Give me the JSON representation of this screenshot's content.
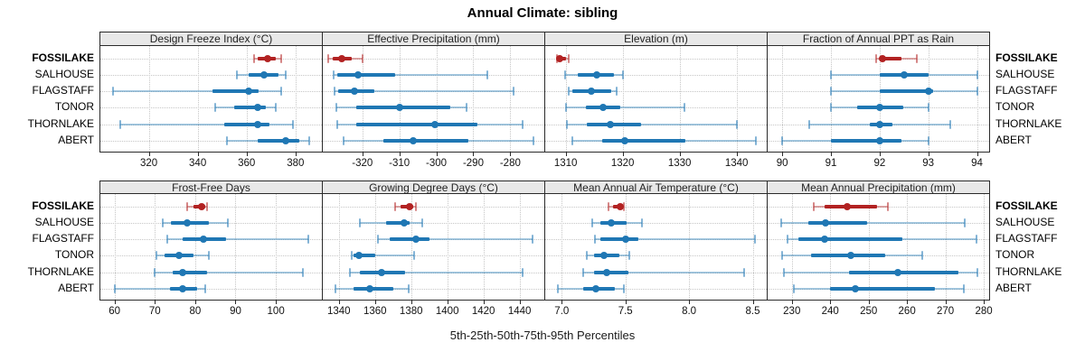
{
  "title": "Annual Climate: sibling",
  "footer": "5th-25th-50th-75th-95th Percentiles",
  "sites": [
    "FOSSILAKE",
    "SALHOUSE",
    "FLAGSTAFF",
    "TONOR",
    "THORNLAKE",
    "ABERT"
  ],
  "highlight_site": "FOSSILAKE",
  "colors": {
    "highlight": "#b22222",
    "normal": "#1f77b4",
    "grid": "#c6c6c6",
    "header_bg": "#e8e8e8",
    "border": "#2b2b2b"
  },
  "chart_data": {
    "type": "dotplot-percentiles",
    "title": "Annual Climate: sibling",
    "xlabel": "5th-25th-50th-75th-95th Percentiles",
    "percentiles": [
      5,
      25,
      50,
      75,
      95
    ],
    "layout": {
      "rows": 2,
      "cols": 4,
      "grid": "dotted",
      "legend_position": "none"
    },
    "categories": [
      "FOSSILAKE",
      "SALHOUSE",
      "FLAGSTAFF",
      "TONOR",
      "THORNLAKE",
      "ABERT"
    ],
    "panels": [
      {
        "title": "Design Freeze Index (°C)",
        "domain": [
          300.2,
          390.8
        ],
        "ticks": [
          {
            "v": 320,
            "label": "320"
          },
          {
            "v": 340,
            "label": "340"
          },
          {
            "v": 360,
            "label": "360"
          },
          {
            "v": 380,
            "label": "380"
          }
        ],
        "values": [
          [
            363,
            364.5,
            368.5,
            372,
            374
          ],
          [
            356,
            361,
            367,
            373,
            376
          ],
          [
            305.5,
            346,
            361,
            365,
            374
          ],
          [
            347,
            355,
            364.5,
            368,
            372
          ],
          [
            308.5,
            351,
            364.5,
            369.5,
            379
          ],
          [
            352,
            364.5,
            376,
            381.5,
            385.5
          ]
        ]
      },
      {
        "title": "Effective Precipitation (mm)",
        "domain": [
          -330.7,
          -270.8
        ],
        "ticks": [
          {
            "v": -320,
            "label": "-320"
          },
          {
            "v": -310,
            "label": "-310"
          },
          {
            "v": -300,
            "label": "-300"
          },
          {
            "v": -290,
            "label": "-290"
          },
          {
            "v": -280,
            "label": "-280"
          }
        ],
        "values": [
          [
            -329.2,
            -328,
            -325.6,
            -322.9,
            -320
          ],
          [
            -327.8,
            -326.7,
            -321.2,
            -311.2,
            -286.1
          ],
          [
            -327.5,
            -326.5,
            -322.2,
            -316.7,
            -279
          ],
          [
            -327,
            -321.6,
            -310,
            -296.3,
            -291.9
          ],
          [
            -326.7,
            -321.6,
            -300.5,
            -288.9,
            -276.7
          ],
          [
            -325,
            -314.3,
            -306.2,
            -291.4,
            -273.7
          ]
        ]
      },
      {
        "title": "Elevation (m)",
        "domain": [
          1306.4,
          1345.3
        ],
        "ticks": [
          {
            "v": 1310,
            "label": "1310"
          },
          {
            "v": 1320,
            "label": "1320"
          },
          {
            "v": 1330,
            "label": "1330"
          },
          {
            "v": 1340,
            "label": "1340"
          }
        ],
        "values": [
          [
            1308.4,
            1308.7,
            1309,
            1310,
            1310.5
          ],
          [
            1309.9,
            1312.1,
            1315.4,
            1318.5,
            1320
          ],
          [
            1310.6,
            1311.1,
            1314.5,
            1318,
            1319
          ],
          [
            1310,
            1313.5,
            1316.5,
            1319.6,
            1330.9
          ],
          [
            1310.2,
            1313.7,
            1317.9,
            1323.3,
            1340
          ],
          [
            1311.2,
            1316.4,
            1320.4,
            1331,
            1343.4
          ]
        ]
      },
      {
        "title": "Fraction of Annual PPT as Rain",
        "domain": [
          89.7,
          94.25
        ],
        "ticks": [
          {
            "v": 90,
            "label": "90"
          },
          {
            "v": 91,
            "label": "91"
          },
          {
            "v": 92,
            "label": "92"
          },
          {
            "v": 93,
            "label": "93"
          },
          {
            "v": 94,
            "label": "94"
          }
        ],
        "values": [
          [
            91.93,
            92,
            92.05,
            92.45,
            92.76
          ],
          [
            91,
            92,
            92.5,
            93,
            94
          ],
          [
            91,
            92,
            93,
            93.1,
            94
          ],
          [
            91,
            91.53,
            92,
            92.48,
            93
          ],
          [
            90.55,
            91.8,
            92,
            92.26,
            93.45
          ],
          [
            90,
            91,
            92,
            92.45,
            93
          ]
        ]
      },
      {
        "title": "Frost-Free Days",
        "domain": [
          56.5,
          111.4
        ],
        "ticks": [
          {
            "v": 60,
            "label": "60"
          },
          {
            "v": 70,
            "label": "70"
          },
          {
            "v": 80,
            "label": "80"
          },
          {
            "v": 90,
            "label": "90"
          },
          {
            "v": 100,
            "label": "100"
          }
        ],
        "values": [
          [
            78,
            79.5,
            81.5,
            82.5,
            83
          ],
          [
            72,
            74,
            78,
            83.3,
            88
          ],
          [
            73,
            77,
            82,
            87.7,
            108
          ],
          [
            70.3,
            72.5,
            76,
            79.5,
            83.3
          ],
          [
            70,
            74.5,
            77,
            83,
            106.8
          ],
          [
            60,
            73.8,
            77,
            80.5,
            82.4
          ]
        ]
      },
      {
        "title": "Growing Degree Days (°C)",
        "domain": [
          1331.1,
          1453.7
        ],
        "ticks": [
          {
            "v": 1340,
            "label": "1340"
          },
          {
            "v": 1360,
            "label": "1360"
          },
          {
            "v": 1380,
            "label": "1380"
          },
          {
            "v": 1400,
            "label": "1400"
          },
          {
            "v": 1420,
            "label": "1420"
          },
          {
            "v": 1440,
            "label": "1440"
          }
        ],
        "values": [
          [
            1371,
            1374,
            1379,
            1381,
            1382.5
          ],
          [
            1351.5,
            1366,
            1376,
            1379,
            1386
          ],
          [
            1361.5,
            1368,
            1382.5,
            1390,
            1447
          ],
          [
            1347,
            1348,
            1351,
            1360,
            1381.5
          ],
          [
            1346,
            1351.5,
            1363.5,
            1376.5,
            1441.5
          ],
          [
            1338,
            1348,
            1357,
            1370,
            1378.5
          ]
        ]
      },
      {
        "title": "Mean Annual Air Temperature (°C)",
        "domain": [
          6.87,
          8.61
        ],
        "ticks": [
          {
            "v": 7,
            "label": "7.0"
          },
          {
            "v": 7.5,
            "label": "7.5"
          },
          {
            "v": 8,
            "label": "8.0"
          },
          {
            "v": 8.5,
            "label": "8.5"
          }
        ],
        "values": [
          [
            7.37,
            7.4,
            7.46,
            7.48,
            7.49
          ],
          [
            7.24,
            7.3,
            7.39,
            7.51,
            7.63
          ],
          [
            7.26,
            7.3,
            7.5,
            7.6,
            8.52
          ],
          [
            7.2,
            7.25,
            7.33,
            7.45,
            7.53
          ],
          [
            7.17,
            7.25,
            7.35,
            7.52,
            8.43
          ],
          [
            6.97,
            7.17,
            7.27,
            7.42,
            7.49
          ]
        ]
      },
      {
        "title": "Mean Annual Precipitation (mm)",
        "domain": [
          223.7,
          281.4
        ],
        "ticks": [
          {
            "v": 230,
            "label": "230"
          },
          {
            "v": 240,
            "label": "240"
          },
          {
            "v": 250,
            "label": "250"
          },
          {
            "v": 260,
            "label": "260"
          },
          {
            "v": 270,
            "label": "270"
          },
          {
            "v": 280,
            "label": "280"
          }
        ],
        "values": [
          [
            235.7,
            238.6,
            244.5,
            252.2,
            255
          ],
          [
            227.3,
            234.2,
            238.8,
            249.6,
            275
          ],
          [
            228.8,
            231.8,
            238.5,
            258.8,
            278
          ],
          [
            227.5,
            235.1,
            245.3,
            254.3,
            264
          ],
          [
            227.9,
            244.9,
            257.7,
            273.5,
            278.4
          ],
          [
            230.6,
            240,
            246.5,
            267.3,
            274.7
          ]
        ]
      }
    ]
  }
}
